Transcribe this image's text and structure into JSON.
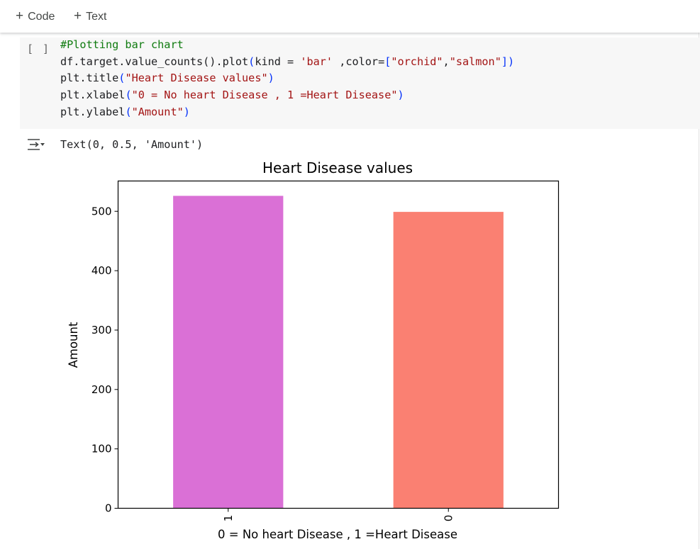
{
  "toolbar": {
    "add_code_label": "Code",
    "add_text_label": "Text",
    "plus_glyph": "+"
  },
  "cell": {
    "run_indicator": "[ ]",
    "code_lines": {
      "line1": "#Plotting bar chart",
      "line2_a": "df.target.value_counts()",
      "line2_b": ".plot",
      "line2_c": "kind = ",
      "line2_d": "'bar'",
      "line2_e": " ,color=",
      "line2_f": "\"orchid\"",
      "line2_g": ",",
      "line2_h": "\"salmon\"",
      "line3_a": "plt.title",
      "line3_b": "\"Heart Disease values\"",
      "line4_a": "plt.xlabel",
      "line4_b": "\"0 = No heart Disease , 1 =Heart Disease\"",
      "line5_a": "plt.ylabel",
      "line5_b": "\"Amount\""
    },
    "output_icon": "output-toggle-icon",
    "output_text": "Text(0, 0.5, 'Amount')"
  },
  "chart_data": {
    "type": "bar",
    "title": "Heart Disease values",
    "xlabel": "0 = No heart Disease , 1 =Heart Disease",
    "ylabel": "Amount",
    "categories": [
      "1",
      "0"
    ],
    "values": [
      526,
      499
    ],
    "colors": [
      "#da70d6",
      "#fa8072"
    ],
    "ylim": [
      0,
      551
    ],
    "yticks": [
      0,
      100,
      200,
      300,
      400,
      500
    ],
    "grid": false
  }
}
